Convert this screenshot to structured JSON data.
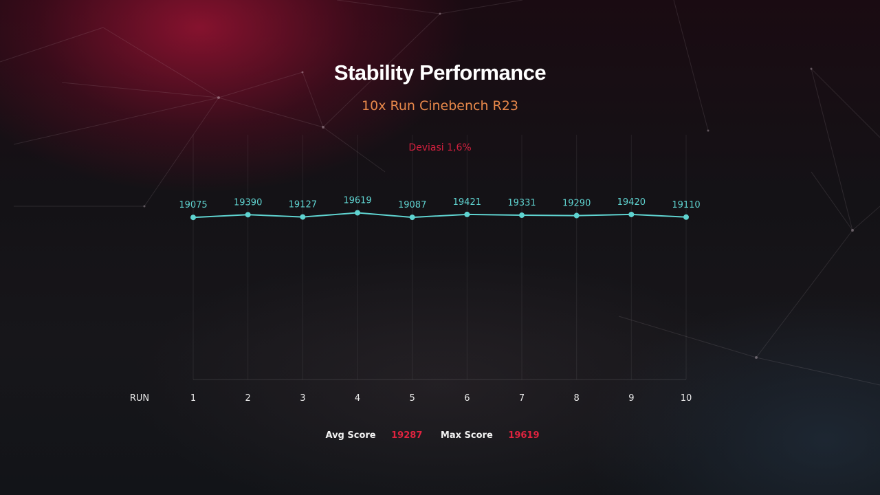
{
  "header": {
    "title": "Stability Performance",
    "subtitle": "10x Run Cinebench R23",
    "deviation": "Deviasi 1,6%"
  },
  "summary": {
    "avg_label": "Avg Score",
    "avg_value": "19287",
    "max_label": "Max Score",
    "max_value": "19619"
  },
  "colors": {
    "line": "#5fd3d0",
    "title": "#ffffff",
    "subtitle": "#e8884a",
    "accent": "#e0233f",
    "grid": "#3a3a40"
  },
  "chart_data": {
    "type": "line",
    "title": "Stability Performance",
    "subtitle": "10x Run Cinebench R23",
    "xlabel": "RUN",
    "ylabel": "",
    "x": [
      1,
      2,
      3,
      4,
      5,
      6,
      7,
      8,
      9,
      10
    ],
    "categories": [
      "1",
      "2",
      "3",
      "4",
      "5",
      "6",
      "7",
      "8",
      "9",
      "10"
    ],
    "values": [
      19075,
      19390,
      19127,
      19619,
      19087,
      19421,
      19331,
      19290,
      19420,
      19110
    ],
    "data_labels": [
      "19075",
      "19390",
      "19127",
      "19619",
      "19087",
      "19421",
      "19331",
      "19290",
      "19420",
      "19110"
    ],
    "ylim": [
      0,
      28800
    ],
    "grid": "vertical",
    "annotation": "Deviasi 1,6%"
  }
}
